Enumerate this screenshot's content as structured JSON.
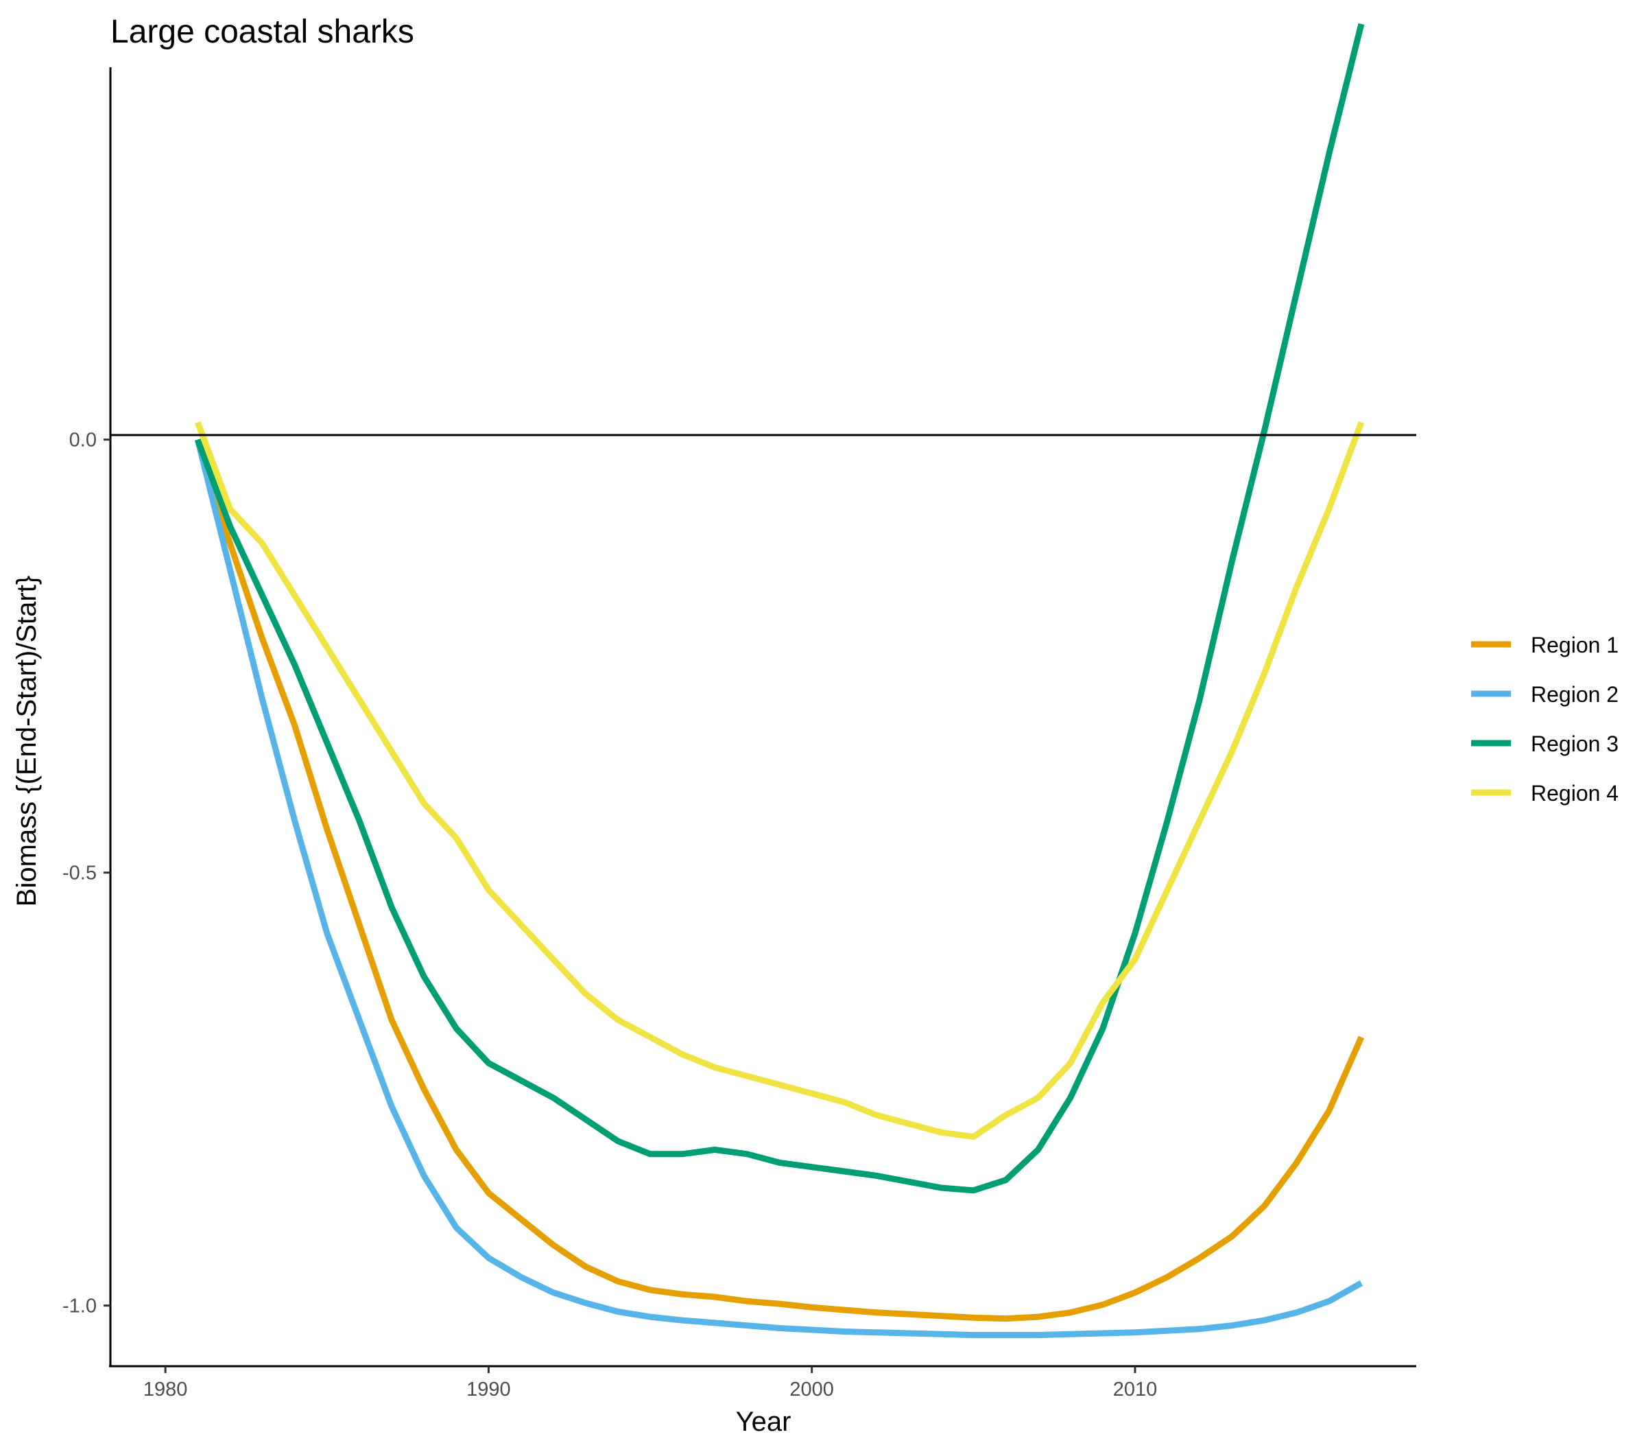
{
  "chart_data": {
    "type": "line",
    "title": "Large coastal sharks",
    "xlabel": "Year",
    "ylabel": "Biomass {(End-Start)/Start}",
    "xlim": [
      1978.3,
      2018.7
    ],
    "ylim": [
      -1.07,
      0.43
    ],
    "x_ticks": [
      1980,
      1990,
      2000,
      2010
    ],
    "x_tick_labels": [
      "1980",
      "1990",
      "2000",
      "2010"
    ],
    "y_ticks": [
      -1.0,
      -0.5,
      0.0
    ],
    "y_tick_labels": [
      "-1.0",
      "-0.5",
      "0.0"
    ],
    "reference_line_y": 0,
    "grid": false,
    "legend_position": "right",
    "series": [
      {
        "name": "Region 1",
        "color": "#E69F00",
        "x": [
          1981,
          1982,
          1983,
          1984,
          1985,
          1986,
          1987,
          1988,
          1989,
          1990,
          1991,
          1992,
          1993,
          1994,
          1995,
          1996,
          1997,
          1998,
          1999,
          2000,
          2001,
          2002,
          2003,
          2004,
          2005,
          2006,
          2007,
          2008,
          2009,
          2010,
          2011,
          2012,
          2013,
          2014,
          2015,
          2016,
          2017
        ],
        "values": [
          0.0,
          -0.12,
          -0.23,
          -0.33,
          -0.45,
          -0.56,
          -0.67,
          -0.75,
          -0.82,
          -0.87,
          -0.9,
          -0.93,
          -0.955,
          -0.972,
          -0.982,
          -0.987,
          -0.99,
          -0.995,
          -0.998,
          -1.002,
          -1.005,
          -1.008,
          -1.01,
          -1.012,
          -1.014,
          -1.015,
          -1.013,
          -1.008,
          -0.999,
          -0.985,
          -0.967,
          -0.945,
          -0.92,
          -0.885,
          -0.835,
          -0.775,
          -0.69
        ]
      },
      {
        "name": "Region 2",
        "color": "#56B4E9",
        "x": [
          1981,
          1982,
          1983,
          1984,
          1985,
          1986,
          1987,
          1988,
          1989,
          1990,
          1991,
          1992,
          1993,
          1994,
          1995,
          1996,
          1997,
          1998,
          1999,
          2000,
          2001,
          2002,
          2003,
          2004,
          2005,
          2006,
          2007,
          2008,
          2009,
          2010,
          2011,
          2012,
          2013,
          2014,
          2015,
          2016,
          2017
        ],
        "values": [
          0.0,
          -0.15,
          -0.3,
          -0.44,
          -0.57,
          -0.67,
          -0.77,
          -0.85,
          -0.91,
          -0.945,
          -0.967,
          -0.985,
          -0.997,
          -1.007,
          -1.013,
          -1.017,
          -1.02,
          -1.023,
          -1.026,
          -1.028,
          -1.03,
          -1.031,
          -1.032,
          -1.033,
          -1.034,
          -1.034,
          -1.034,
          -1.033,
          -1.032,
          -1.031,
          -1.029,
          -1.027,
          -1.023,
          -1.017,
          -1.008,
          -0.995,
          -0.974
        ]
      },
      {
        "name": "Region 3",
        "color": "#009E73",
        "x": [
          1981,
          1982,
          1983,
          1984,
          1985,
          1986,
          1987,
          1988,
          1989,
          1990,
          1991,
          1992,
          1993,
          1994,
          1995,
          1996,
          1997,
          1998,
          1999,
          2000,
          2001,
          2002,
          2003,
          2004,
          2005,
          2006,
          2007,
          2008,
          2009,
          2010,
          2011,
          2012,
          2013,
          2014,
          2015,
          2016,
          2017
        ],
        "values": [
          0.0,
          -0.1,
          -0.18,
          -0.26,
          -0.35,
          -0.44,
          -0.54,
          -0.62,
          -0.68,
          -0.72,
          -0.74,
          -0.76,
          -0.785,
          -0.81,
          -0.825,
          -0.825,
          -0.82,
          -0.825,
          -0.835,
          -0.84,
          -0.845,
          -0.85,
          -0.857,
          -0.864,
          -0.867,
          -0.855,
          -0.82,
          -0.76,
          -0.68,
          -0.57,
          -0.44,
          -0.3,
          -0.14,
          0.01,
          0.17,
          0.33,
          0.48
        ]
      },
      {
        "name": "Region 4",
        "color": "#F0E442",
        "x": [
          1981,
          1982,
          1983,
          1984,
          1985,
          1986,
          1987,
          1988,
          1989,
          1990,
          1991,
          1992,
          1993,
          1994,
          1995,
          1996,
          1997,
          1998,
          1999,
          2000,
          2001,
          2002,
          2003,
          2004,
          2005,
          2006,
          2007,
          2008,
          2009,
          2010,
          2011,
          2012,
          2013,
          2014,
          2015,
          2016,
          2017
        ],
        "values": [
          0.02,
          -0.08,
          -0.12,
          -0.18,
          -0.24,
          -0.3,
          -0.36,
          -0.42,
          -0.46,
          -0.52,
          -0.56,
          -0.6,
          -0.64,
          -0.67,
          -0.69,
          -0.71,
          -0.725,
          -0.735,
          -0.745,
          -0.755,
          -0.765,
          -0.78,
          -0.79,
          -0.8,
          -0.805,
          -0.78,
          -0.76,
          -0.72,
          -0.65,
          -0.6,
          -0.52,
          -0.44,
          -0.36,
          -0.27,
          -0.17,
          -0.08,
          0.02
        ]
      }
    ]
  }
}
